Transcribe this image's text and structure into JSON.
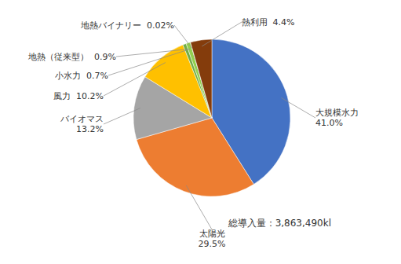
{
  "chart_data": {
    "type": "pie",
    "categories": [
      "大規模水力",
      "太陽光",
      "バイオマス",
      "風力",
      "小水力",
      "地熱（従来型）",
      "地熱バイナリー",
      "熱利用"
    ],
    "values": [
      41.0,
      29.5,
      13.2,
      10.2,
      0.7,
      0.9,
      0.02,
      4.4
    ],
    "value_labels": [
      "41.0%",
      "29.5%",
      "13.2%",
      "10.2%",
      "0.7%",
      "0.9%",
      "0.02%",
      "4.4%"
    ],
    "colors": [
      "#4472c4",
      "#ed7d31",
      "#a5a5a5",
      "#ffc000",
      "#70ad47",
      "#92d050",
      "#7f3f00",
      "#843c0c"
    ],
    "data_labels": true,
    "annotations": [
      "総導入量：3,863,490kl"
    ]
  }
}
